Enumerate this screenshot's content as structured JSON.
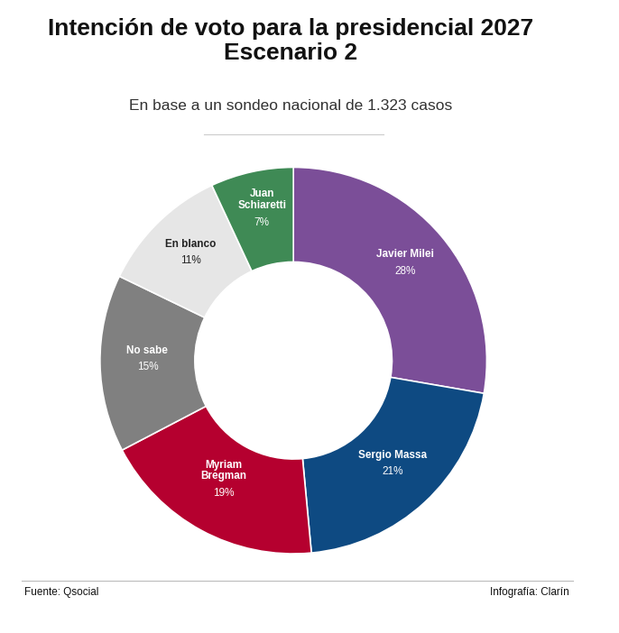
{
  "chart_data": {
    "type": "donut",
    "title": "Intención de voto para la presidencial 2027\nEscenario 2",
    "subtitle": "En base a un sondeo nacional de 1.323 casos",
    "categories": [
      "Javier Milei",
      "Sergio Massa",
      "Myriam Bregman",
      "No sabe",
      "En blanco",
      "Juan Schiaretti"
    ],
    "values": [
      28,
      21,
      19,
      15,
      11,
      7
    ],
    "value_labels": [
      "28%",
      "21%",
      "19%",
      "15%",
      "11%",
      "7%"
    ],
    "colors": [
      "#7b4e98",
      "#0e4a82",
      "#b5002f",
      "#808080",
      "#e6e6e6",
      "#3f8a55"
    ],
    "data_labels": true,
    "source": "Fuente: Qsocial",
    "credit": "Infografía: Clarín"
  }
}
